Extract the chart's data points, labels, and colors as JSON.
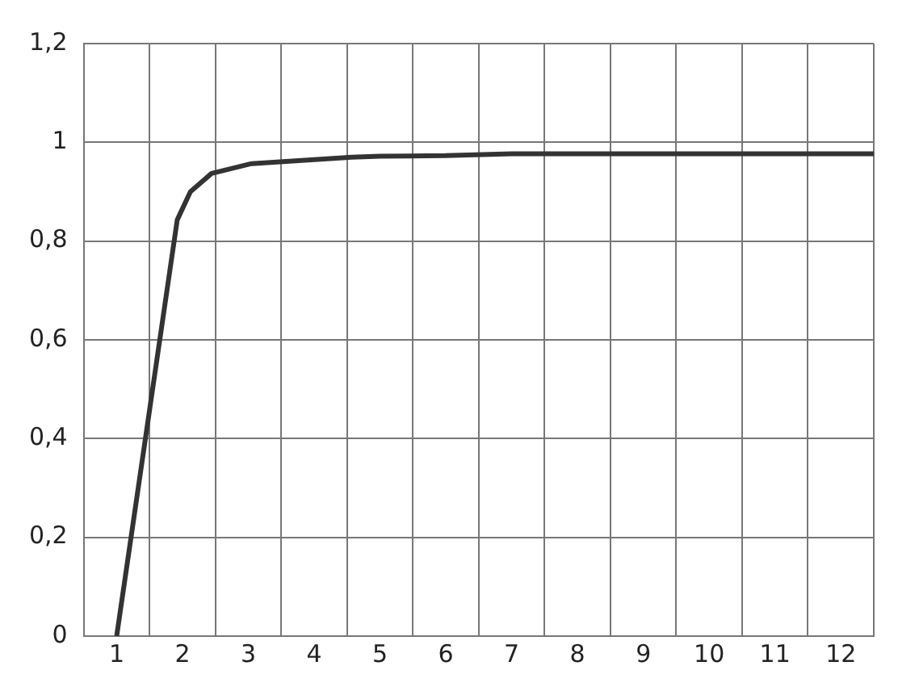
{
  "chart_data": {
    "type": "line",
    "x": [
      1,
      1.92,
      2.12,
      2.44,
      3.05,
      4.57,
      5,
      6,
      7,
      12.5
    ],
    "series": [
      {
        "color": "#333333",
        "values": [
          0,
          0.843,
          0.9,
          0.937,
          0.957,
          0.97,
          0.972,
          0.973,
          0.977,
          0.977
        ]
      }
    ],
    "xlim": [
      0.5,
      12.5
    ],
    "xticks": [
      1,
      2,
      3,
      4,
      5,
      6,
      7,
      8,
      9,
      10,
      11,
      12
    ],
    "ylim": [
      0,
      1.2
    ],
    "yticks": [
      0,
      {
        "value": 0.2,
        "label": "0,2"
      },
      {
        "value": 0.4,
        "label": "0,4"
      },
      {
        "value": 0.6,
        "label": "0,6"
      },
      {
        "value": 0.8,
        "label": "0,8"
      },
      1,
      {
        "value": 1.2,
        "label": "1,2"
      }
    ],
    "grid": true,
    "legend": false,
    "marker": "none",
    "line_style": "solid"
  }
}
